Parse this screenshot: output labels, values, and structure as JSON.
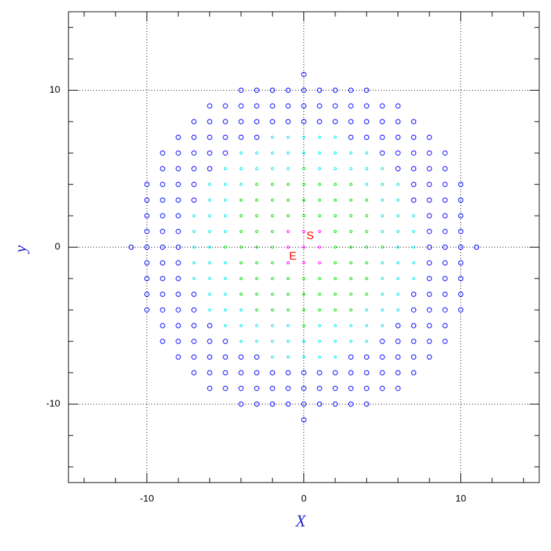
{
  "chart_data": {
    "type": "scatter",
    "xlabel": "X",
    "ylabel": "y",
    "xlim": [
      -15,
      15
    ],
    "ylim": [
      -15,
      15
    ],
    "xticks": [
      -10,
      0,
      10
    ],
    "yticks": [
      -10,
      0,
      10
    ],
    "xminorticks": [
      -14,
      -12,
      -8,
      -6,
      -4,
      -2,
      2,
      4,
      6,
      8,
      12,
      14
    ],
    "yminorticks": [
      -14,
      -12,
      -8,
      -6,
      -4,
      -2,
      2,
      4,
      6,
      8,
      12,
      14
    ],
    "grid": true,
    "annotations": [
      {
        "text": "S",
        "x": 0.4,
        "y": 0.7,
        "color": "#ff0000"
      },
      {
        "text": "E",
        "x": -0.7,
        "y": -0.6,
        "color": "#ff0000"
      }
    ],
    "series": [
      {
        "color": "#ff00ff",
        "x": [
          -1,
          0,
          1,
          -1,
          0,
          1,
          -1,
          0,
          1
        ],
        "y": [
          -1,
          -1,
          -1,
          0,
          0,
          0,
          1,
          1,
          1
        ]
      },
      {
        "color": "#00dd00",
        "x": [
          0,
          -3,
          -2,
          -1,
          0,
          1,
          2,
          3,
          -4,
          -3,
          -2,
          -1,
          0,
          1,
          2,
          3,
          4,
          -4,
          -3,
          -2,
          -1,
          0,
          1,
          2,
          3,
          4,
          -4,
          -3,
          -2,
          2,
          3,
          4,
          -5,
          -4,
          -3,
          -2,
          2,
          3,
          4,
          5,
          -4,
          -3,
          -2,
          2,
          3,
          4,
          -4,
          -3,
          -2,
          -1,
          0,
          1,
          2,
          3,
          4,
          -4,
          -3,
          -2,
          -1,
          0,
          1,
          2,
          3,
          4,
          -3,
          -2,
          -1,
          0,
          1,
          2,
          3,
          0
        ],
        "y": [
          -5,
          -4,
          -4,
          -4,
          -4,
          -4,
          -4,
          -4,
          -3,
          -3,
          -3,
          -3,
          -3,
          -3,
          -3,
          -3,
          -3,
          -2,
          -2,
          -2,
          -2,
          -2,
          -2,
          -2,
          -2,
          -2,
          -1,
          -1,
          -1,
          -1,
          -1,
          -1,
          0,
          0,
          0,
          0,
          0,
          0,
          0,
          0,
          1,
          1,
          1,
          1,
          1,
          1,
          2,
          2,
          2,
          2,
          2,
          2,
          2,
          2,
          2,
          3,
          3,
          3,
          3,
          3,
          3,
          3,
          3,
          3,
          4,
          4,
          4,
          4,
          4,
          4,
          4,
          5
        ]
      },
      {
        "color": "#00e5e5",
        "x": [
          -2,
          -1,
          0,
          1,
          2,
          -4,
          -3,
          -2,
          -1,
          0,
          1,
          2,
          3,
          4,
          -5,
          -4,
          -3,
          -2,
          -1,
          1,
          2,
          3,
          4,
          5,
          -6,
          -5,
          -4,
          4,
          5,
          6,
          -6,
          -5,
          5,
          6,
          -7,
          -6,
          -5,
          5,
          6,
          7,
          -7,
          -6,
          -5,
          5,
          6,
          7,
          -7,
          -6,
          6,
          7,
          -7,
          -6,
          -5,
          5,
          6,
          7,
          -7,
          -6,
          -5,
          5,
          6,
          7,
          -6,
          -5,
          5,
          6,
          -6,
          -5,
          -4,
          4,
          5,
          6,
          -5,
          -4,
          -3,
          -2,
          -1,
          1,
          2,
          3,
          4,
          5,
          -4,
          -3,
          -2,
          -1,
          0,
          1,
          2,
          3,
          4,
          -2,
          -1,
          0,
          1,
          2
        ],
        "y": [
          -7,
          -7,
          -7,
          -7,
          -7,
          -6,
          -6,
          -6,
          -6,
          -6,
          -6,
          -6,
          -6,
          -6,
          -5,
          -5,
          -5,
          -5,
          -5,
          -5,
          -5,
          -5,
          -5,
          -5,
          -4,
          -4,
          -4,
          -4,
          -4,
          -4,
          -3,
          -3,
          -3,
          -3,
          -2,
          -2,
          -2,
          -2,
          -2,
          -2,
          -1,
          -1,
          -1,
          -1,
          -1,
          -1,
          0,
          0,
          0,
          0,
          1,
          1,
          1,
          1,
          1,
          1,
          2,
          2,
          2,
          2,
          2,
          2,
          3,
          3,
          3,
          3,
          4,
          4,
          4,
          4,
          4,
          4,
          5,
          5,
          5,
          5,
          5,
          5,
          5,
          5,
          5,
          5,
          6,
          6,
          6,
          6,
          6,
          6,
          6,
          6,
          6,
          7,
          7,
          7,
          7,
          7
        ]
      },
      {
        "color": "#0000ff",
        "x": [
          0,
          -4,
          -3,
          -2,
          -1,
          0,
          1,
          2,
          3,
          4,
          -6,
          -5,
          -4,
          -3,
          -2,
          -1,
          0,
          1,
          2,
          3,
          4,
          5,
          6,
          -7,
          -6,
          -5,
          -4,
          -3,
          -2,
          -1,
          0,
          1,
          2,
          3,
          4,
          5,
          6,
          7,
          -8,
          -7,
          -6,
          -5,
          -4,
          -3,
          3,
          4,
          5,
          6,
          7,
          8,
          -9,
          -8,
          -7,
          -6,
          -5,
          5,
          6,
          7,
          8,
          9,
          -9,
          -8,
          -7,
          -6,
          6,
          7,
          8,
          9,
          -10,
          -9,
          -8,
          -7,
          7,
          8,
          9,
          10,
          -10,
          -9,
          -8,
          -7,
          7,
          8,
          9,
          10,
          -10,
          -9,
          -8,
          8,
          9,
          10,
          -10,
          -9,
          -8,
          8,
          9,
          10,
          -11,
          -10,
          -9,
          -8,
          8,
          9,
          10,
          11,
          -10,
          -9,
          -8,
          8,
          9,
          10,
          -10,
          -9,
          -8,
          8,
          9,
          10,
          -10,
          -9,
          -8,
          -7,
          7,
          8,
          9,
          10,
          -10,
          -9,
          -8,
          -7,
          7,
          8,
          9,
          10,
          -9,
          -8,
          -7,
          -6,
          6,
          7,
          8,
          9,
          -9,
          -8,
          -7,
          -6,
          -5,
          5,
          6,
          7,
          8,
          9,
          -8,
          -7,
          -6,
          -5,
          -4,
          -3,
          3,
          4,
          5,
          6,
          7,
          8,
          -7,
          -6,
          -5,
          -4,
          -3,
          -2,
          -1,
          0,
          1,
          2,
          3,
          4,
          5,
          6,
          7,
          -6,
          -5,
          -4,
          -3,
          -2,
          -1,
          0,
          1,
          2,
          3,
          4,
          5,
          6,
          -4,
          -3,
          -2,
          -1,
          0,
          1,
          2,
          3,
          4,
          0
        ],
        "y": [
          -11,
          -10,
          -10,
          -10,
          -10,
          -10,
          -10,
          -10,
          -10,
          -10,
          -9,
          -9,
          -9,
          -9,
          -9,
          -9,
          -9,
          -9,
          -9,
          -9,
          -9,
          -9,
          -9,
          -8,
          -8,
          -8,
          -8,
          -8,
          -8,
          -8,
          -8,
          -8,
          -8,
          -8,
          -8,
          -8,
          -8,
          -8,
          -7,
          -7,
          -7,
          -7,
          -7,
          -7,
          -7,
          -7,
          -7,
          -7,
          -7,
          -7,
          -6,
          -6,
          -6,
          -6,
          -6,
          -6,
          -6,
          -6,
          -6,
          -6,
          -5,
          -5,
          -5,
          -5,
          -5,
          -5,
          -5,
          -5,
          -4,
          -4,
          -4,
          -4,
          -4,
          -4,
          -4,
          -4,
          -3,
          -3,
          -3,
          -3,
          -3,
          -3,
          -3,
          -3,
          -2,
          -2,
          -2,
          -2,
          -2,
          -2,
          -1,
          -1,
          -1,
          -1,
          -1,
          -1,
          0,
          0,
          0,
          0,
          0,
          0,
          0,
          0,
          1,
          1,
          1,
          1,
          1,
          1,
          2,
          2,
          2,
          2,
          2,
          2,
          3,
          3,
          3,
          3,
          3,
          3,
          3,
          3,
          4,
          4,
          4,
          4,
          4,
          4,
          4,
          4,
          5,
          5,
          5,
          5,
          5,
          5,
          5,
          5,
          6,
          6,
          6,
          6,
          6,
          6,
          6,
          6,
          6,
          6,
          7,
          7,
          7,
          7,
          7,
          7,
          7,
          7,
          7,
          7,
          7,
          7,
          8,
          8,
          8,
          8,
          8,
          8,
          8,
          8,
          8,
          8,
          8,
          8,
          8,
          8,
          8,
          9,
          9,
          9,
          9,
          9,
          9,
          9,
          9,
          9,
          9,
          9,
          9,
          9,
          10,
          10,
          10,
          10,
          10,
          10,
          10,
          10,
          10,
          11
        ]
      }
    ]
  }
}
